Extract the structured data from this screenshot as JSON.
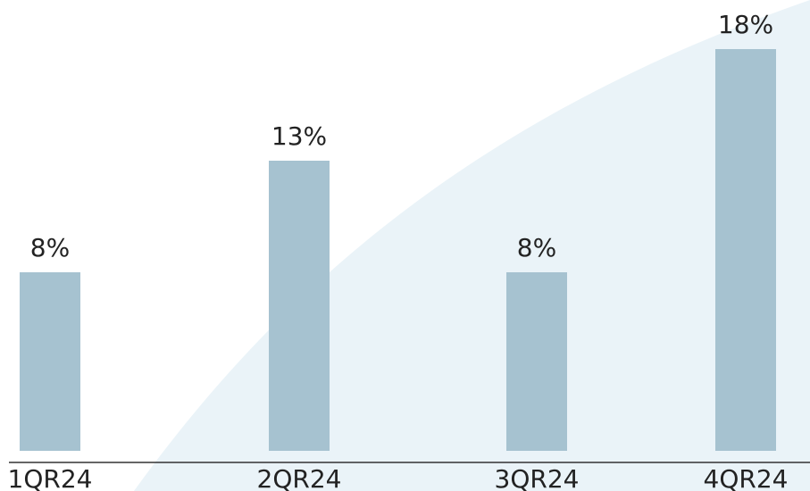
{
  "colors": {
    "bar": "#a6c2d0",
    "background_shape": "#eaf3f8",
    "axis": "#333333",
    "text": "#222222"
  },
  "chart_data": {
    "type": "bar",
    "categories": [
      "1QR24",
      "2QR24",
      "3QR24",
      "4QR24"
    ],
    "values": [
      8,
      13,
      8,
      18
    ],
    "value_labels": [
      "8%",
      "13%",
      "8%",
      "18%"
    ],
    "ylim": [
      0,
      20
    ],
    "grid": false,
    "legend": "none"
  }
}
